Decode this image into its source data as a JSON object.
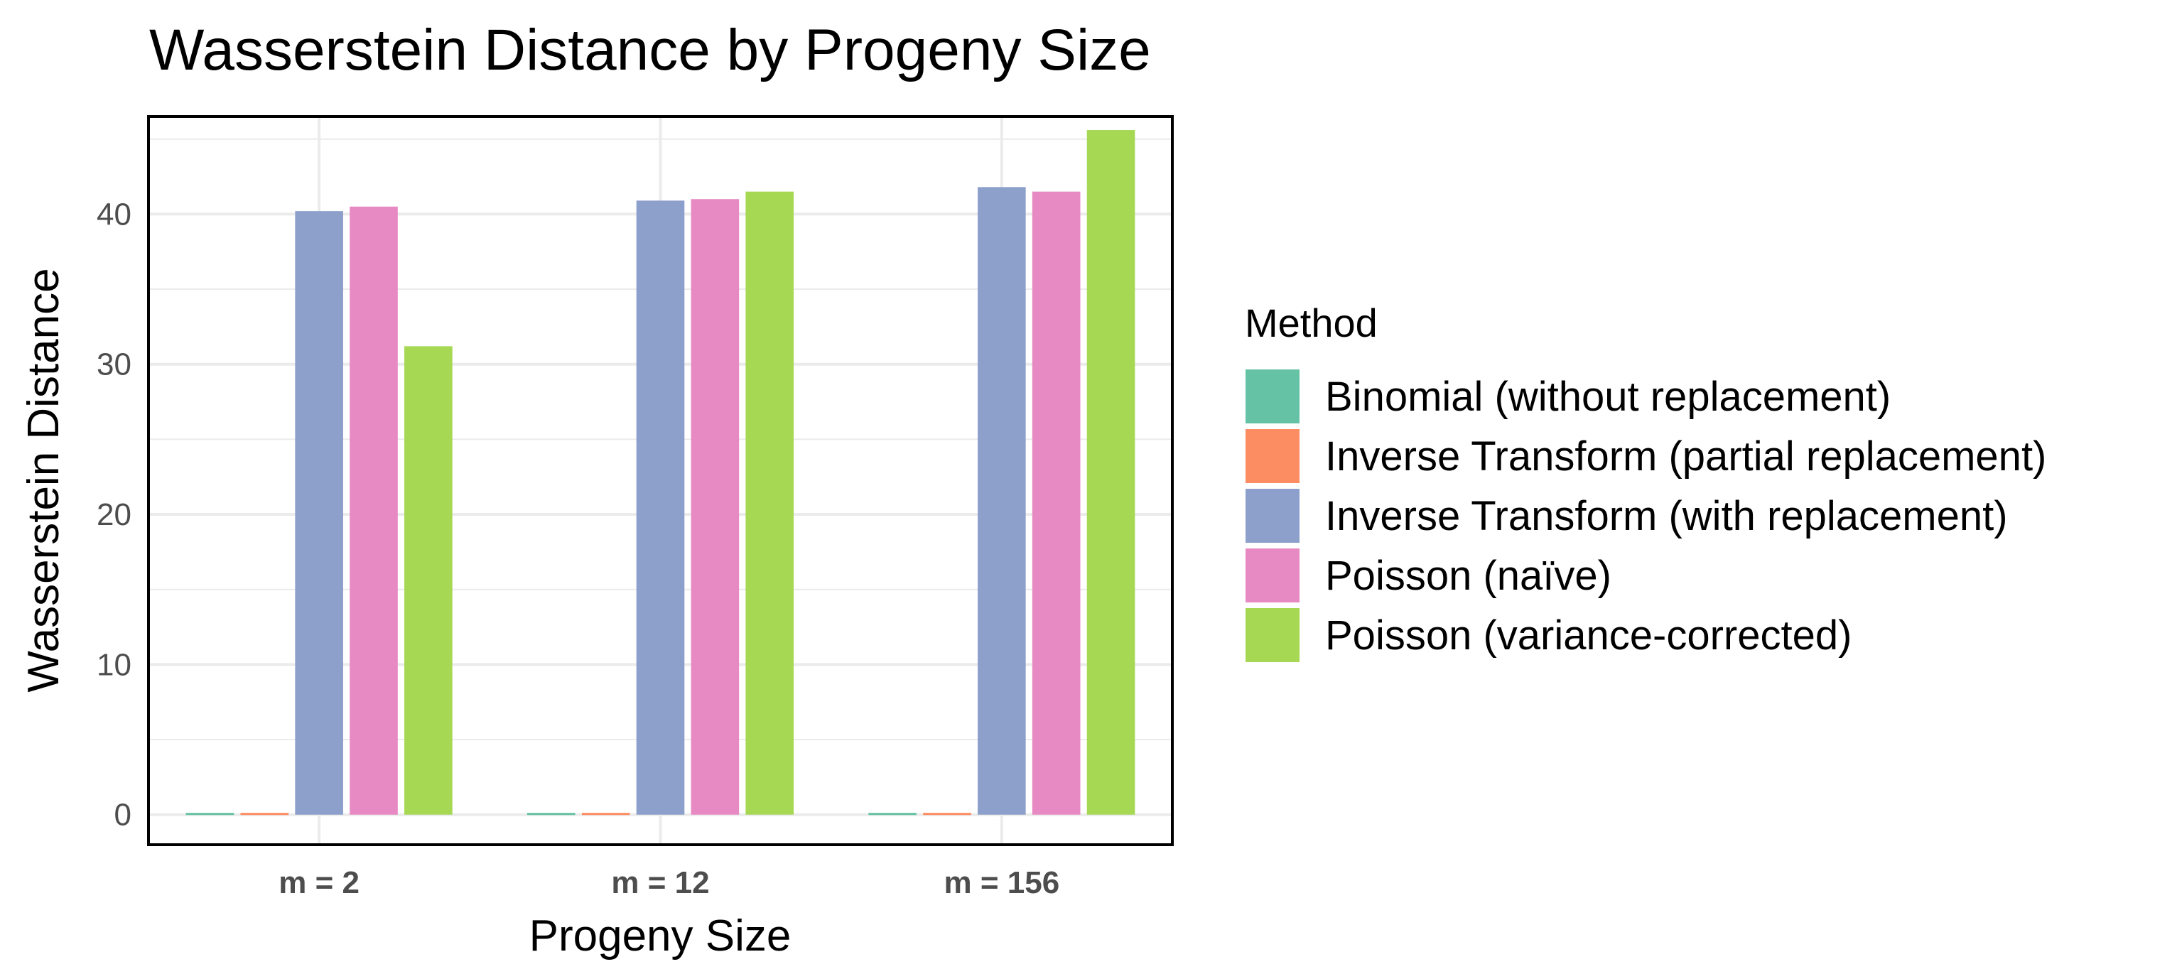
{
  "chart_data": {
    "type": "bar",
    "title": "Wasserstein Distance by Progeny Size",
    "xlabel": "Progeny Size",
    "ylabel": "Wasserstein Distance",
    "categories": [
      "m = 2",
      "m = 12",
      "m = 156"
    ],
    "ylim": [
      -2,
      46.5
    ],
    "yticks": [
      0,
      10,
      20,
      30,
      40
    ],
    "grid": true,
    "legend": {
      "title": "Method",
      "position": "right"
    },
    "series": [
      {
        "name": "Binomial (without replacement)",
        "color": "#66c2a5",
        "values": [
          0.12,
          0.12,
          0.12
        ]
      },
      {
        "name": "Inverse Transform (partial replacement)",
        "color": "#fc8d62",
        "values": [
          0.12,
          0.12,
          0.12
        ]
      },
      {
        "name": "Inverse Transform (with replacement)",
        "color": "#8da0cb",
        "values": [
          40.2,
          40.9,
          41.8
        ]
      },
      {
        "name": "Poisson (naïve)",
        "color": "#e78ac3",
        "values": [
          40.5,
          41.0,
          41.5
        ]
      },
      {
        "name": "Poisson (variance-corrected)",
        "color": "#a6d854",
        "values": [
          31.2,
          41.5,
          45.6
        ]
      }
    ]
  }
}
